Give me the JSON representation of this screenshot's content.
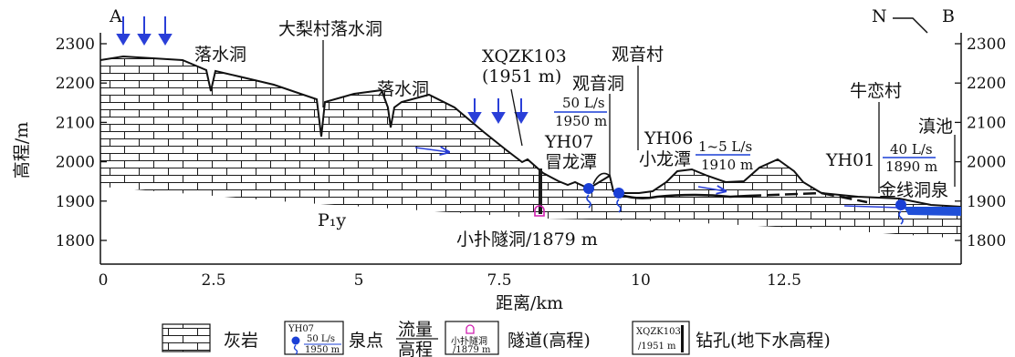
{
  "diagram": {
    "corner_left": "A",
    "corner_right": "B",
    "north_label": "N",
    "y_axis_label": "高程/m",
    "x_axis_label": "距离/km",
    "y_ticks": [
      "2300",
      "2200",
      "2100",
      "2000",
      "1900",
      "1800"
    ],
    "x_ticks": [
      "0",
      "2.5",
      "5",
      "7.5",
      "10",
      "12.5"
    ],
    "stratum_label": "P₁y",
    "labels": {
      "daliluo": "大梨村落水洞",
      "luoshui1": "落水洞",
      "luoshui2": "落水洞",
      "xqzk_name": "XQZK103",
      "xqzk_elev": "(1951  m)",
      "guanyin_village": "观音村",
      "guanyin_cave": "观音洞",
      "flow1_top": "50 L/s",
      "flow1_bottom": "1950 m",
      "yh07_code": "YH07",
      "yh07_name": "冒龙潭",
      "yh06_code": "YH06",
      "yh06_name": "小龙潭",
      "flow2_top": "1~5 L/s",
      "flow2_bottom": "1910 m",
      "niulian": "牛恋村",
      "dianchi": "滇池",
      "yh01_code": "YH01",
      "flow3_top": "40 L/s",
      "flow3_bottom": "1890 m",
      "jinxian": "金线洞泉",
      "tunnel": "小扑隧洞/1879 m"
    },
    "legend": {
      "limestone": "灰岩",
      "spring_code": "YH07",
      "spring_flow": "50 L/s",
      "spring_elev": "1950 m",
      "spring_label": "泉点",
      "spring_frac_top": "流量",
      "spring_frac_bottom": "高程",
      "tunnel_icon_top": "小扑隧洞",
      "tunnel_icon_bottom": "/1879 m",
      "tunnel_label": "隧道(高程)",
      "borehole_icon_top": "XQZK103",
      "borehole_icon_bottom": "/1951 m",
      "borehole_label": "钻孔(地下水高程)"
    },
    "colors": {
      "spring": "#1a3fd6",
      "flow_arrow": "#2a3fd8",
      "tunnel": "#d01fb0",
      "lake": "#1f4fd8",
      "ink": "#111111"
    }
  }
}
